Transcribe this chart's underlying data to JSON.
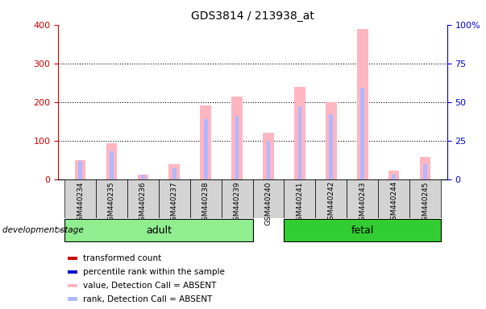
{
  "title": "GDS3814 / 213938_at",
  "samples": [
    "GSM440234",
    "GSM440235",
    "GSM440236",
    "GSM440237",
    "GSM440238",
    "GSM440239",
    "GSM440240",
    "GSM440241",
    "GSM440242",
    "GSM440243",
    "GSM440244",
    "GSM440245"
  ],
  "absent_value": [
    50,
    93,
    12,
    40,
    192,
    215,
    120,
    238,
    200,
    390,
    22,
    57
  ],
  "absent_rank_pct": [
    12,
    18,
    3,
    7,
    39,
    41,
    25,
    47,
    42,
    59,
    3,
    10
  ],
  "group_labels": [
    "adult",
    "fetal"
  ],
  "adult_color": "#90ee90",
  "fetal_color": "#32cd32",
  "pink_color": "#ffb6c1",
  "lightblue_color": "#b0b8ff",
  "red_color": "#cc0000",
  "blue_color": "#0000cc",
  "ylim_left": [
    0,
    400
  ],
  "ylim_right": [
    0,
    100
  ],
  "yticks_left": [
    0,
    100,
    200,
    300,
    400
  ],
  "yticks_right": [
    0,
    25,
    50,
    75,
    100
  ],
  "ytick_labels_right": [
    "0",
    "25",
    "50",
    "75",
    "100%"
  ],
  "background_color": "#ffffff",
  "tick_color_left": "#cc0000",
  "tick_color_right": "#0000cc",
  "legend_items": [
    {
      "label": "transformed count",
      "color": "#cc0000"
    },
    {
      "label": "percentile rank within the sample",
      "color": "#0000cc"
    },
    {
      "label": "value, Detection Call = ABSENT",
      "color": "#ffb6c1"
    },
    {
      "label": "rank, Detection Call = ABSENT",
      "color": "#b0b8ff"
    }
  ]
}
